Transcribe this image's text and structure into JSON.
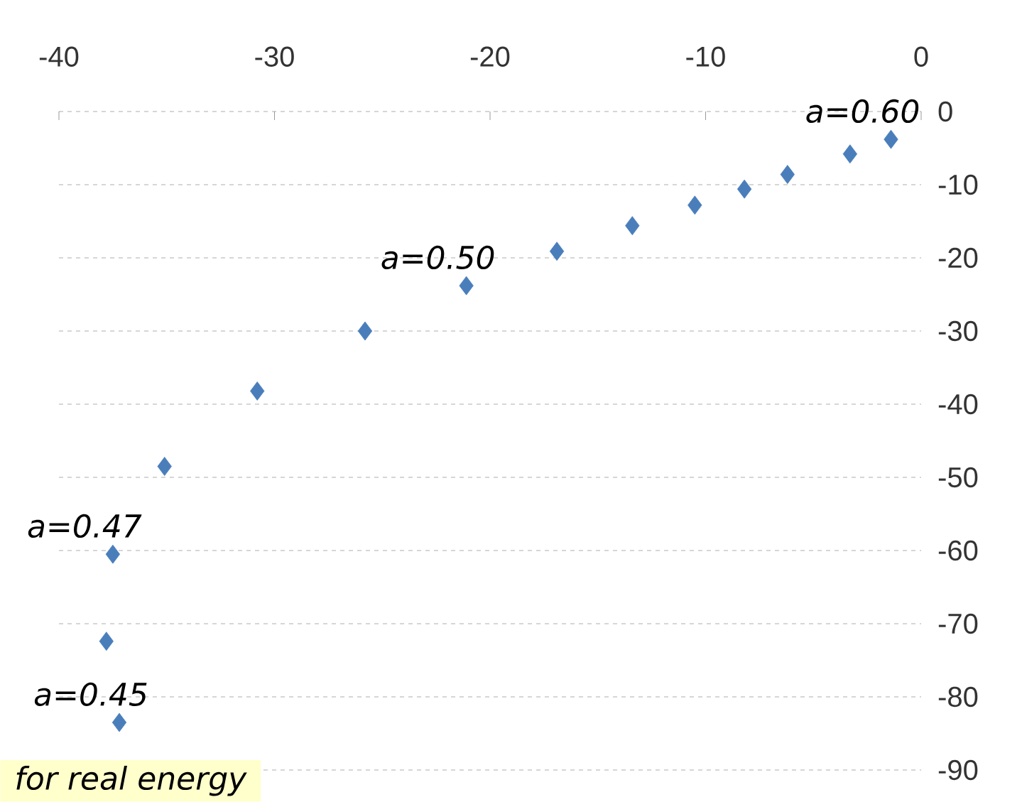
{
  "chart_data": {
    "type": "scatter",
    "x": [
      -1.4,
      -3.3,
      -6.2,
      -8.2,
      -10.5,
      -13.4,
      -16.9,
      -21.1,
      -25.8,
      -30.8,
      -35.1,
      -37.5,
      -37.8,
      -37.2
    ],
    "values": [
      -3.8,
      -5.8,
      -8.6,
      -10.6,
      -12.8,
      -15.6,
      -19.1,
      -23.8,
      -30.0,
      -38.2,
      -48.5,
      -60.5,
      -72.4,
      -83.5
    ],
    "color": "#4a7ebb",
    "marker": "diamond",
    "xlim": [
      -40,
      0
    ],
    "xticks": [
      -40,
      -30,
      -20,
      -10,
      0
    ],
    "ylim": [
      -90,
      0
    ],
    "yticks": [
      -90,
      -80,
      -70,
      -60,
      -50,
      -40,
      -30,
      -20,
      -10,
      0
    ],
    "grid": "y",
    "legend": false,
    "annotations": [
      {
        "text": "a=0.60",
        "x": -1.4,
        "y": -3.8
      },
      {
        "text": "a=0.50",
        "x": -21.1,
        "y": -23.8
      },
      {
        "text": "a=0.47",
        "x": -37.5,
        "y": -60.5
      },
      {
        "text": "a=0.45",
        "x": -37.2,
        "y": -83.5
      },
      "for real energy"
    ]
  }
}
